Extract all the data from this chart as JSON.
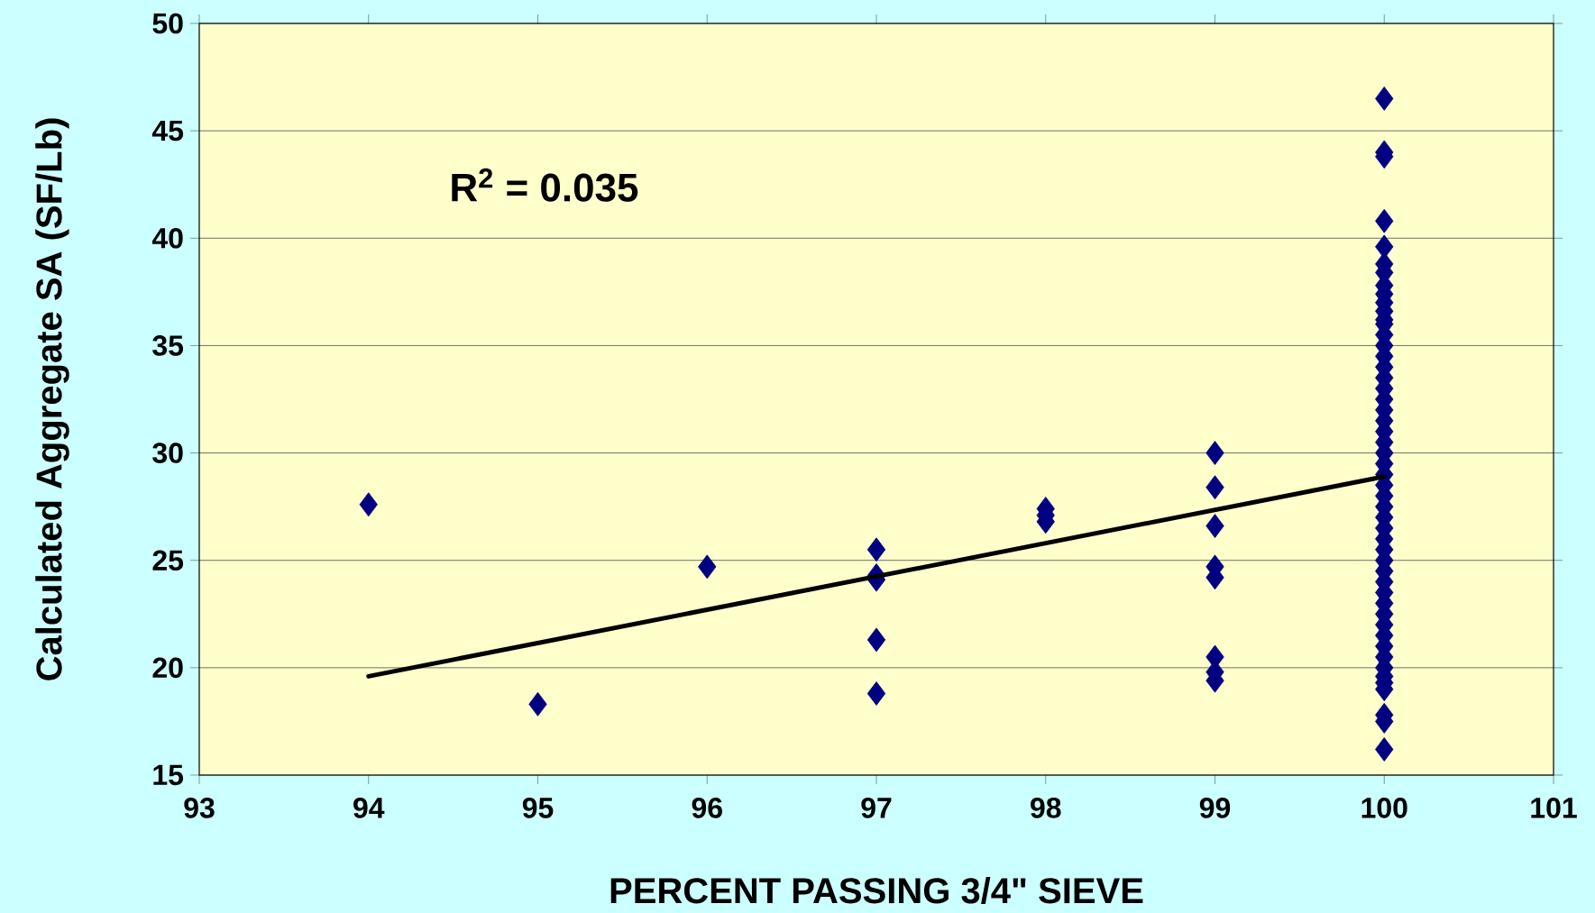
{
  "chart_data": {
    "type": "scatter",
    "xlabel": "PERCENT PASSING 3/4\" SIEVE",
    "ylabel": "Calculated Aggregate SA (SF/Lb)",
    "annotations": [
      "R$^{2}$ = 0.035"
    ],
    "xlim": [
      93,
      101
    ],
    "xticks": [
      93,
      94,
      95,
      96,
      97,
      98,
      99,
      100,
      101
    ],
    "ylim": [
      15,
      50
    ],
    "yticks": [
      15,
      20,
      25,
      30,
      35,
      40,
      45,
      50
    ],
    "grid": "y",
    "series": [
      {
        "marker": "diamond",
        "color": "#000080",
        "x": [
          94,
          95,
          96,
          97,
          97,
          97,
          97,
          97,
          98,
          98,
          98,
          99,
          99,
          99,
          99,
          99,
          99,
          99,
          99,
          100,
          100,
          100,
          100,
          100,
          100,
          100,
          100,
          100,
          100,
          100,
          100,
          100,
          100,
          100,
          100,
          100,
          100,
          100,
          100,
          100,
          100,
          100,
          100,
          100,
          100,
          100,
          100,
          100,
          100,
          100,
          100,
          100,
          100,
          100,
          100,
          100,
          100,
          100,
          100,
          100,
          100,
          100,
          100,
          100,
          100,
          100,
          100,
          100,
          100,
          100
        ],
        "values": [
          27.6,
          18.3,
          24.7,
          25.5,
          24.3,
          24.1,
          21.3,
          18.8,
          27.4,
          27.1,
          26.8,
          30.0,
          28.4,
          26.6,
          24.7,
          24.2,
          20.5,
          19.8,
          19.4,
          46.5,
          44.0,
          43.8,
          40.8,
          39.6,
          38.8,
          38.4,
          37.8,
          37.4,
          37.0,
          36.6,
          36.2,
          36.0,
          35.5,
          35.0,
          34.5,
          34.0,
          33.5,
          33.0,
          32.5,
          32.0,
          31.5,
          31.0,
          30.5,
          30.0,
          29.5,
          29.0,
          28.5,
          28.0,
          27.5,
          27.0,
          26.5,
          26.0,
          25.5,
          25.0,
          24.5,
          24.0,
          23.5,
          23.0,
          22.5,
          22.0,
          21.5,
          21.0,
          20.5,
          20.0,
          19.6,
          19.3,
          19.0,
          17.8,
          17.5,
          16.2
        ]
      },
      {
        "type": "line",
        "marker": "none",
        "line_style": "solid",
        "color": "#000000",
        "x": [
          94,
          100
        ],
        "values": [
          19.6,
          28.9
        ]
      }
    ]
  }
}
